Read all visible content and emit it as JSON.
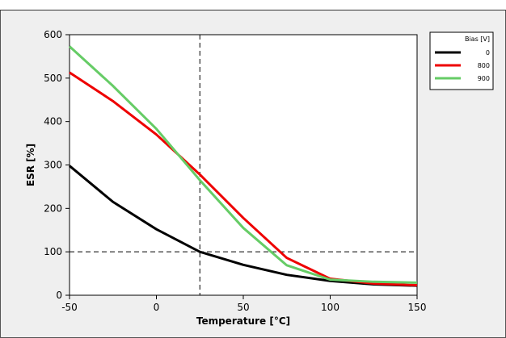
{
  "chart_data": {
    "type": "line",
    "title": "",
    "xlabel": "Temperature [°C]",
    "ylabel": "ESR [%]",
    "xlim": [
      -50,
      150
    ],
    "ylim": [
      0,
      600
    ],
    "x_ticks": [
      -50,
      0,
      50,
      100,
      150
    ],
    "y_ticks": [
      0,
      100,
      200,
      300,
      400,
      500,
      600
    ],
    "x_tick_labels": [
      "-50",
      "0",
      "50",
      "100",
      "150"
    ],
    "y_tick_labels": [
      "0",
      "100",
      "200",
      "300",
      "400",
      "500",
      "600"
    ],
    "grid": false,
    "reference_lines": {
      "x": 25,
      "y": 100,
      "style": "dashed"
    },
    "legend": {
      "title": "Bias [V]",
      "placement": "outside-right-top",
      "entries": [
        "0",
        "800",
        "900"
      ]
    },
    "x": [
      -50,
      -25,
      0,
      25,
      50,
      75,
      100,
      125,
      150
    ],
    "series": [
      {
        "name": "0",
        "color": "#000000",
        "values": [
          298,
          215,
          152,
          100,
          70,
          47,
          33,
          25,
          22
        ]
      },
      {
        "name": "800",
        "color": "#ee0000",
        "values": [
          513,
          447,
          370,
          278,
          178,
          86,
          38,
          27,
          23
        ]
      },
      {
        "name": "900",
        "color": "#66cc66",
        "values": [
          573,
          482,
          383,
          265,
          155,
          69,
          36,
          31,
          29
        ]
      }
    ]
  }
}
